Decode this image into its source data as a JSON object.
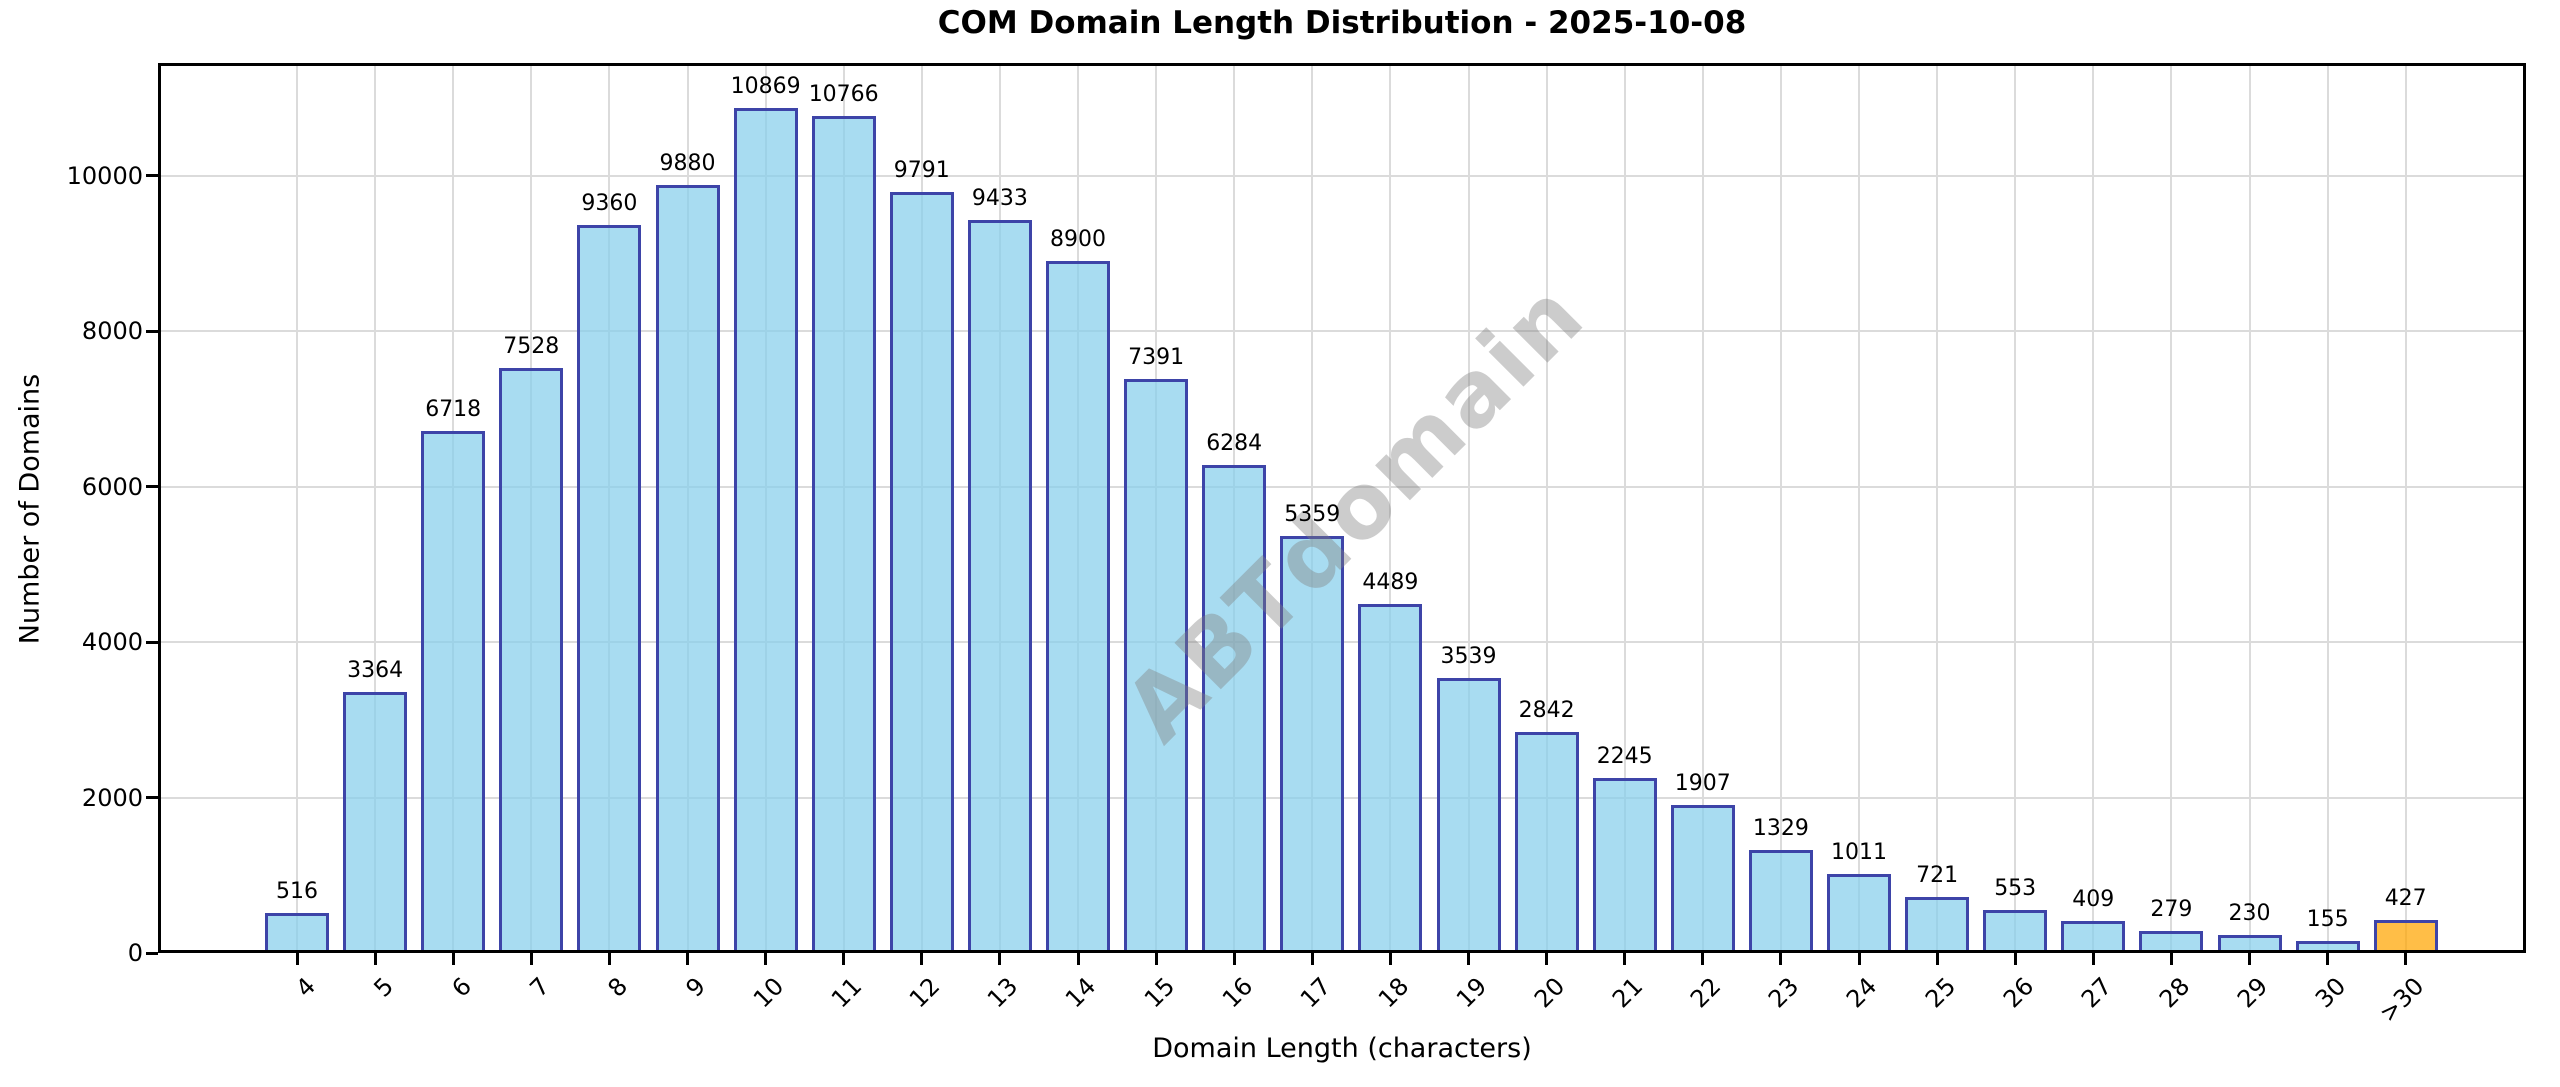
{
  "chart_data": {
    "type": "bar",
    "title": "COM Domain Length Distribution - 2025-10-08",
    "xlabel": "Domain Length (characters)",
    "ylabel": "Number of Domains",
    "categories": [
      "4",
      "5",
      "6",
      "7",
      "8",
      "9",
      "10",
      "11",
      "12",
      "13",
      "14",
      "15",
      "16",
      "17",
      "18",
      "19",
      "20",
      "21",
      "22",
      "23",
      "24",
      "25",
      "26",
      "27",
      "28",
      "29",
      "30",
      ">30"
    ],
    "values": [
      516,
      3364,
      6718,
      7528,
      9360,
      9880,
      10869,
      10766,
      9791,
      9433,
      8900,
      7391,
      6284,
      5359,
      4489,
      3539,
      2842,
      2245,
      1907,
      1329,
      1011,
      721,
      553,
      409,
      279,
      230,
      155,
      427
    ],
    "value_labels_shown": true,
    "yticks": [
      0,
      2000,
      4000,
      6000,
      8000,
      10000
    ],
    "ylim": [
      0,
      11450
    ],
    "grid": true,
    "legend": null,
    "watermark": "ABTdomain",
    "highlight_category": ">30",
    "colors": {
      "bar_fill": "#87CEEB",
      "bar_edge": "#3D44A8",
      "highlight_fill": "#FFA500",
      "fill_alpha": 0.72,
      "grid": "#DBDBDB",
      "axis": "#000000",
      "watermark": "#808080",
      "background": "#FFFFFF"
    }
  }
}
